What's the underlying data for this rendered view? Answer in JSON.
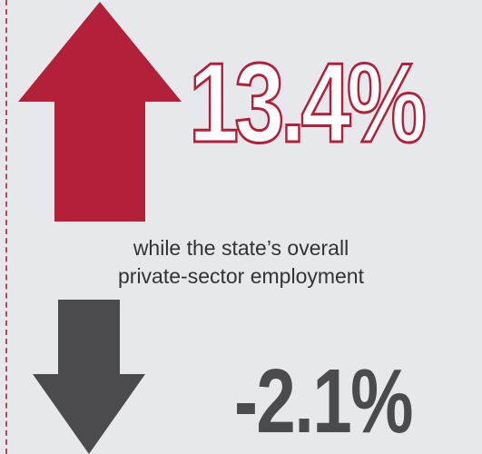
{
  "increase": {
    "value": "13.4%",
    "color": "#b2203a"
  },
  "description": {
    "line1": "while the state’s overall",
    "line2": "private-sector employment"
  },
  "decrease": {
    "value": "-2.1%",
    "color": "#4b4b4d"
  },
  "icons": {
    "up": "up-arrow-icon",
    "down": "down-arrow-icon"
  },
  "colors": {
    "background": "#e6e8eb",
    "border": "#b44a62"
  }
}
